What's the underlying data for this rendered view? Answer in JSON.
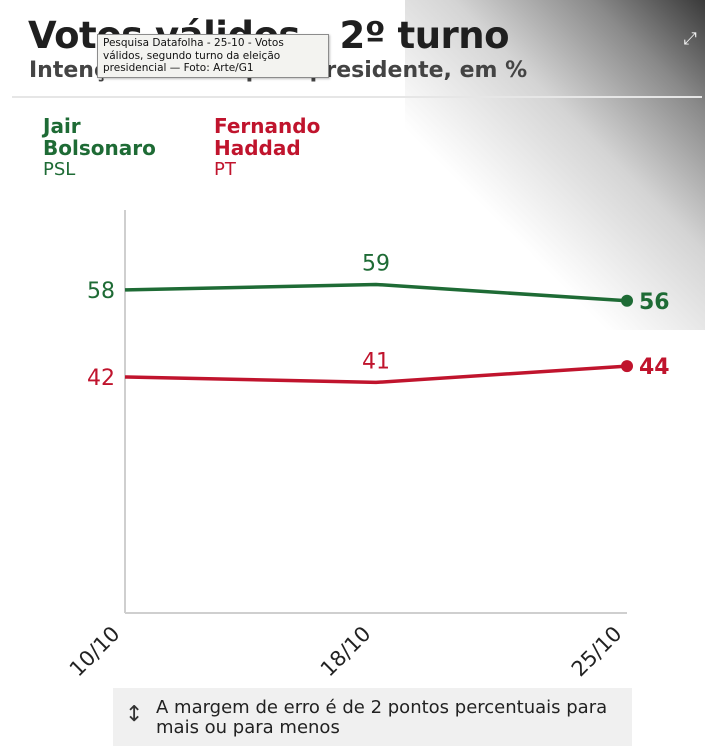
{
  "header": {
    "title": "Votos válidos - 2º turno",
    "subtitle": "Intenção de voto para presidente, em %"
  },
  "tooltip": {
    "text": "Pesquisa Datafolha - 25-10 - Votos válidos, segundo turno da eleição presidencial — Foto: Arte/G1"
  },
  "icons": {
    "expand": "expand-icon",
    "margin_note": "up-down-arrow-icon"
  },
  "chart_data": {
    "type": "line",
    "x": [
      "10/10",
      "18/10",
      "25/10"
    ],
    "ylim": [
      0,
      70
    ],
    "grid": false,
    "legend": "top-left",
    "series": [
      {
        "name": "Jair Bolsonaro",
        "party": "PSL",
        "color": "#1e6b35",
        "values": [
          58,
          59,
          56
        ]
      },
      {
        "name": "Fernando Haddad",
        "party": "PT",
        "color": "#c0142d",
        "values": [
          42,
          41,
          44
        ]
      }
    ]
  },
  "note": {
    "text": "A margem de erro é de 2 pontos percentuais para mais ou para menos"
  }
}
